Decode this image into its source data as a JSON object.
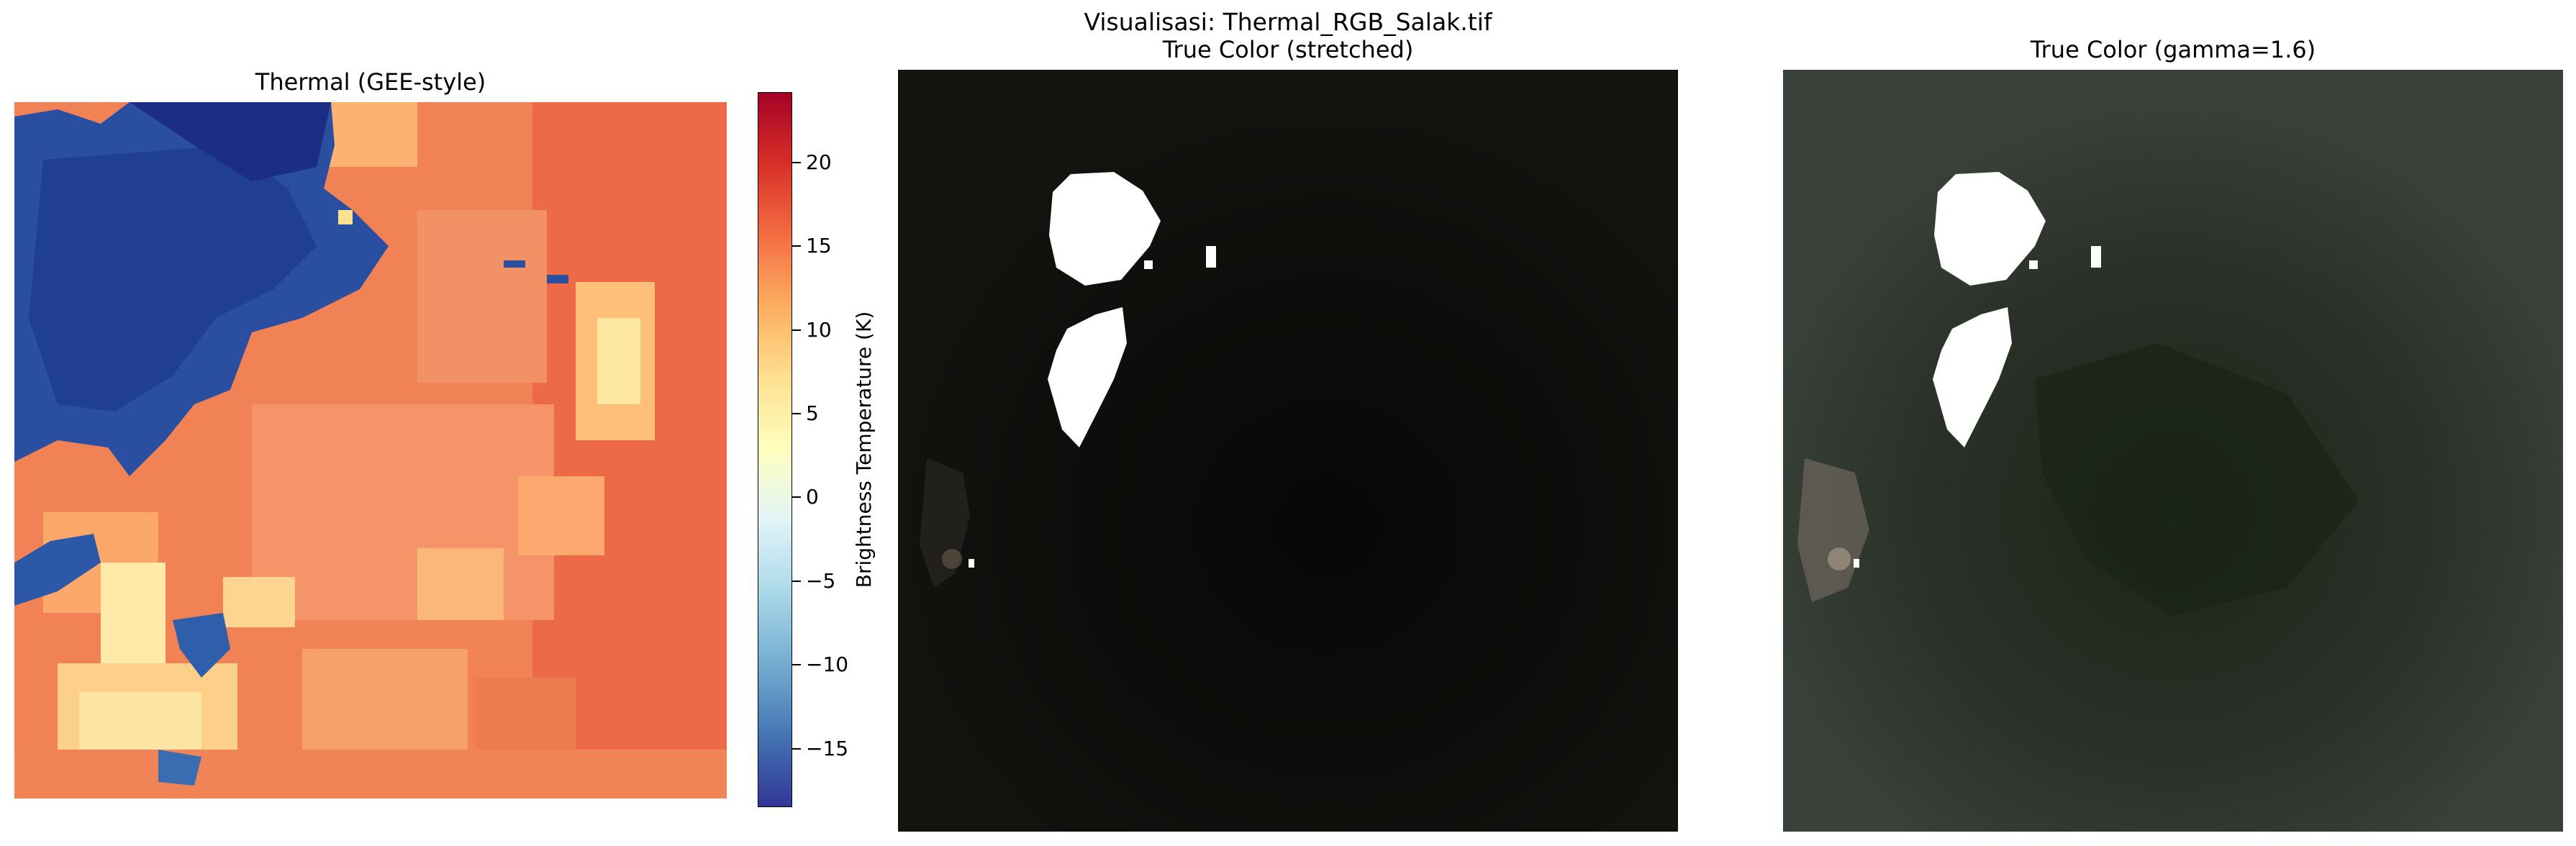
{
  "figure": {
    "suptitle": "Visualisasi: Thermal_RGB_Salak.tif"
  },
  "panels": [
    {
      "title": "Thermal (GEE-style)",
      "colormap": "RdYlBu_r"
    },
    {
      "title": "True Color (stretched)"
    },
    {
      "title": "True Color (gamma=1.6)"
    }
  ],
  "colorbar": {
    "label": "Brightness Temperature (K)",
    "range": [
      -18.5,
      24.2
    ],
    "ticks": [
      {
        "value": 20,
        "label": "20"
      },
      {
        "value": 15,
        "label": "15"
      },
      {
        "value": 10,
        "label": "10"
      },
      {
        "value": 5,
        "label": "5"
      },
      {
        "value": 0,
        "label": "0"
      },
      {
        "value": -5,
        "label": "−5"
      },
      {
        "value": -10,
        "label": "−10"
      },
      {
        "value": -15,
        "label": "−15"
      }
    ],
    "colors": [
      "#a50026",
      "#d73027",
      "#f46d43",
      "#fdae61",
      "#fee090",
      "#ffffbf",
      "#e0f3f8",
      "#abd9e9",
      "#74add1",
      "#4575b4",
      "#313695"
    ]
  }
}
